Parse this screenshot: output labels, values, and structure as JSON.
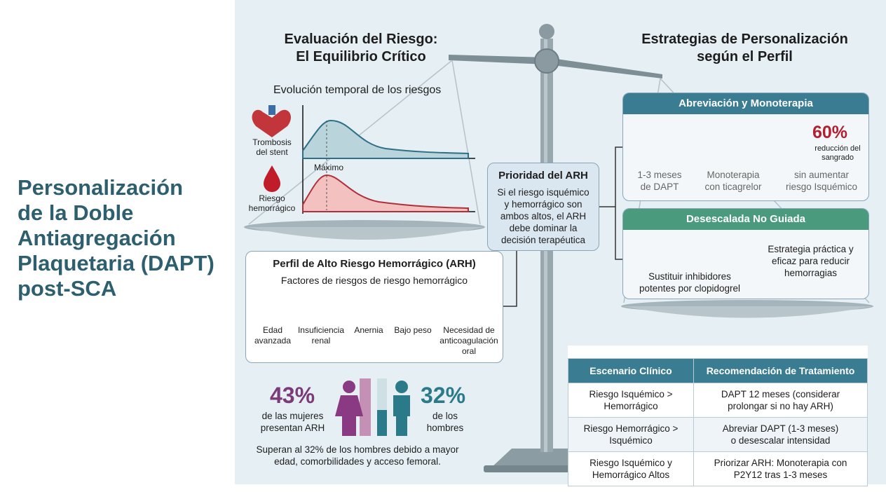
{
  "title": "Personalización\nde la Doble\nAntiagregación\nPlaquetaria (DAPT)\npost-SCA",
  "left_panel": {
    "heading": "Evaluación del Riesgo:\nEl Equilibrio Crítico",
    "chart_title": "Evolución temporal de los riesgos",
    "thrombosis_label": "Trombosis\ndel stent",
    "bleeding_label": "Riesgo\nhemorrágico",
    "peak_label": "Máximo"
  },
  "priority": {
    "title": "Prioridad del ARH",
    "text": "Si el riesgo isquémico\ny hemorrágico son\nambos altos, el ARH\ndebe dominar la\ndecisión terapéutica"
  },
  "hbr_profile": {
    "title": "Perfil de Alto Riesgo Hemorrágico (ARH)",
    "subtitle": "Factores de riesgos de riesgo hemorrágico",
    "factors": [
      "Edad\navanzada",
      "Insuficiencia\nrenal",
      "Anernia",
      "Bajo peso",
      "Necesidad de\nanticoagulación\noral"
    ]
  },
  "sex_stats": {
    "women_value": "43%",
    "women_text": "de las mujeres\npresentan ARH",
    "men_value": "32%",
    "men_text": "de los\nhombres",
    "note": "Superan al 32% de los hombres debido a mayor\nedad, comorbilidades y acceso femoral."
  },
  "right_panel": {
    "heading": "Estrategias de Personalización\nsegún el Perfil",
    "abbreviation": {
      "title": "Abreviación y Monoterapia",
      "items": [
        "1-3 meses\nde DAPT",
        "Monoterapia\ncon ticagrelor"
      ],
      "stat_value": "60%",
      "stat_label": "reducción del\nsangrado",
      "stat_note": "sin aumentar\nriesgo Isquémico"
    },
    "deescalation": {
      "title": "Desescalada No Guiada",
      "items": [
        "Sustituir inhibidores\npotentes por clopidogrel",
        "Estrategia práctica y\neficaz para reducir\nhemorragias"
      ]
    }
  },
  "table": {
    "headers": [
      "Escenario Clínico",
      "Recomendación de Tratamiento"
    ],
    "rows": [
      [
        "Riesgo Isquémico >\nHemorrágico",
        "DAPT 12 meses (considerar\nprolongar si no hay ARH)"
      ],
      [
        "Riesgo Hemorrágico >\nIsquémico",
        "Abreviar DAPT (1-3 meses)\no desescalar intensidad"
      ],
      [
        "Riesgo Isquémico y\nHemorrágico Altos",
        "Priorizar ARH: Monoterapia con\nP2Y12 tras 1-3 meses"
      ]
    ]
  }
}
